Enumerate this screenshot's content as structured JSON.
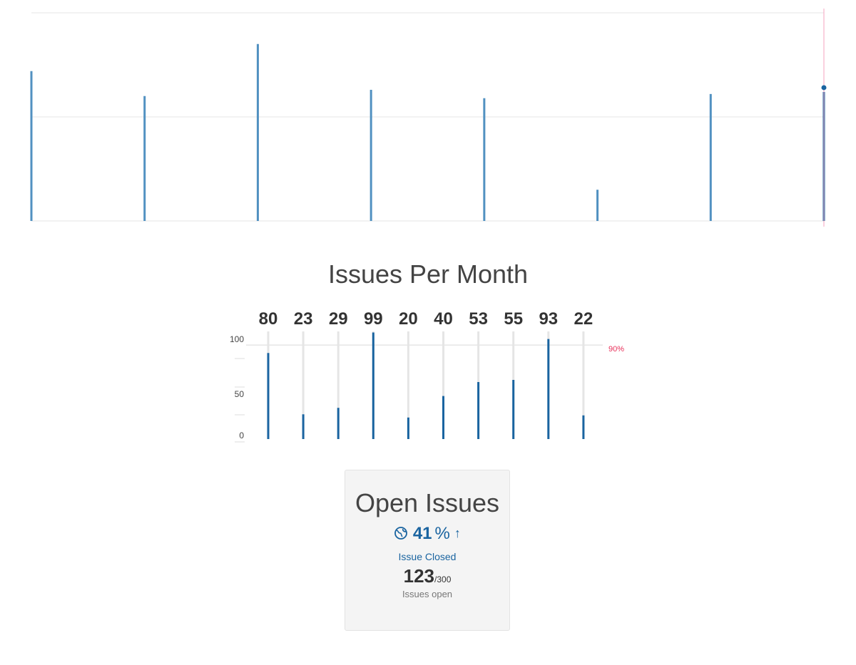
{
  "chart_data": [
    {
      "type": "bar",
      "values": [
        72,
        60,
        85,
        63,
        59,
        15,
        61,
        62
      ],
      "ylim": [
        0,
        100
      ],
      "grid": true,
      "highlight_index": 7,
      "colors": {
        "bar": "#5191c1",
        "grid": "#e6e6e6",
        "cursor": "#f4a3bf",
        "marker": "#1a64a0"
      }
    },
    {
      "type": "bar",
      "title": "Issues Per Month",
      "data_labels": [
        "80",
        "23",
        "29",
        "99",
        "20",
        "40",
        "53",
        "55",
        "93",
        "22"
      ],
      "values": [
        80,
        23,
        29,
        99,
        20,
        40,
        53,
        55,
        93,
        22
      ],
      "yticks": [
        "100",
        "50",
        "0"
      ],
      "ylim": [
        0,
        100
      ],
      "threshold": {
        "value": 90,
        "label": "90%"
      },
      "colors": {
        "bar": "#1a64a0",
        "track": "#e5e5e5",
        "threshold_line": "#d9d9d9",
        "threshold_label": "#e8305a"
      }
    }
  ],
  "card": {
    "title": "Open Issues",
    "icon": "globe-icon",
    "kpi_value": "41",
    "kpi_unit": "%",
    "kpi_trend": "↑",
    "kpi_caption": "Issue Closed",
    "total_value": "123",
    "total_max": "/300",
    "total_caption": "Issues open",
    "accent": "#1a64a0"
  }
}
